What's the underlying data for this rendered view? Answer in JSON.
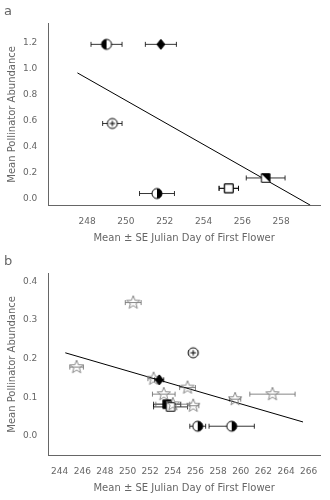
{
  "chart_data": [
    {
      "type": "scatter",
      "title": "a",
      "xlabel": "Mean ± SE Julian Day of First Flower",
      "ylabel": "Mean Pollinator Abundance",
      "xlim": [
        246,
        260
      ],
      "ylim": [
        -0.05,
        1.35
      ],
      "xticks": [
        248,
        250,
        252,
        254,
        256,
        258
      ],
      "yticks": [
        {
          "value": 0,
          "label": "0.0"
        },
        0.2,
        0.4,
        0.6,
        0.8,
        {
          "value": 1,
          "label": "1.0"
        },
        1.2
      ],
      "grid": false,
      "series": [
        {
          "type": "line",
          "color": "black",
          "line_style": "solid",
          "x": [
            247.5,
            259.5
          ],
          "values": [
            0.97,
            -0.05
          ]
        },
        {
          "type": "scatter",
          "marker": "half_circle_left",
          "color": "black",
          "x": [
            249.0
          ],
          "values": [
            1.19
          ],
          "xerr": [
            0.8
          ]
        },
        {
          "type": "scatter",
          "marker": "diamond_filled",
          "color": "black",
          "x": [
            251.8
          ],
          "values": [
            1.19
          ],
          "xerr": [
            0.8
          ]
        },
        {
          "type": "scatter",
          "marker": "circle_cross",
          "color": "black",
          "x": [
            249.3
          ],
          "values": [
            0.58
          ],
          "xerr": [
            0.5
          ]
        },
        {
          "type": "scatter",
          "marker": "half_circle_right",
          "color": "black",
          "x": [
            251.6
          ],
          "values": [
            0.04
          ],
          "xerr": [
            0.9
          ]
        },
        {
          "type": "scatter",
          "marker": "square_filled",
          "color": "black",
          "x": [
            255.3
          ],
          "values": [
            0.08
          ],
          "xerr": [
            0.5
          ]
        },
        {
          "type": "scatter",
          "marker": "square_open",
          "color": "black",
          "x": [
            255.3
          ],
          "values": [
            0.08
          ],
          "xerr": [
            0.5
          ]
        },
        {
          "type": "scatter",
          "marker": "square_half_diag",
          "color": "black",
          "x": [
            257.2
          ],
          "values": [
            0.16
          ],
          "xerr": [
            1.0
          ]
        }
      ]
    },
    {
      "type": "scatter",
      "title": "b",
      "xlabel": "Mean ± SE Julian Day of First Flower",
      "ylabel": "Mean Pollinator Abundance",
      "xlim": [
        243,
        267
      ],
      "ylim": [
        -0.05,
        0.42
      ],
      "xticks": [
        244,
        246,
        248,
        250,
        252,
        254,
        256,
        258,
        260,
        262,
        264,
        266
      ],
      "yticks": [
        {
          "value": 0,
          "label": "0.0"
        },
        0.1,
        0.2,
        0.3,
        0.4
      ],
      "grid": false,
      "series": [
        {
          "type": "line",
          "color": "black",
          "line_style": "solid",
          "x": [
            244.5,
            265.5
          ],
          "values": [
            0.215,
            0.036
          ]
        },
        {
          "type": "scatter",
          "marker": "star_open",
          "color": "gray",
          "x": [
            245.5
          ],
          "values": [
            0.178
          ],
          "xerr": [
            0.6
          ]
        },
        {
          "type": "scatter",
          "marker": "star_open",
          "color": "gray",
          "x": [
            250.5
          ],
          "values": [
            0.345
          ],
          "xerr": [
            0.7
          ]
        },
        {
          "type": "scatter",
          "marker": "star_open",
          "color": "gray",
          "x": [
            252.3
          ],
          "values": [
            0.148
          ],
          "xerr": [
            0.5
          ]
        },
        {
          "type": "scatter",
          "marker": "diamond_filled",
          "color": "black",
          "x": [
            252.8
          ],
          "values": [
            0.145
          ],
          "xerr": [
            0.4
          ]
        },
        {
          "type": "scatter",
          "marker": "star_open",
          "color": "gray",
          "x": [
            253.2
          ],
          "values": [
            0.108
          ],
          "xerr": [
            1.0
          ]
        },
        {
          "type": "scatter",
          "marker": "square_filled",
          "color": "black",
          "x": [
            253.5
          ],
          "values": [
            0.082
          ],
          "xerr": [
            1.2
          ]
        },
        {
          "type": "scatter",
          "marker": "square_open",
          "color": "black",
          "x": [
            253.8
          ],
          "values": [
            0.075
          ],
          "xerr": [
            1.5
          ]
        },
        {
          "type": "scatter",
          "marker": "star_open",
          "color": "gray",
          "x": [
            254.0
          ],
          "values": [
            0.082
          ],
          "xerr": [
            1.5
          ]
        },
        {
          "type": "scatter",
          "marker": "star_open",
          "color": "gray",
          "x": [
            255.3
          ],
          "values": [
            0.125
          ],
          "xerr": [
            0.7
          ]
        },
        {
          "type": "scatter",
          "marker": "star_open",
          "color": "gray",
          "x": [
            255.8
          ],
          "values": [
            0.078
          ],
          "xerr": [
            0.5
          ]
        },
        {
          "type": "scatter",
          "marker": "circle_cross",
          "color": "black",
          "x": [
            255.8
          ],
          "values": [
            0.215
          ],
          "xerr": [
            0.4
          ]
        },
        {
          "type": "scatter",
          "marker": "half_circle_right",
          "color": "black",
          "x": [
            256.2
          ],
          "values": [
            0.025
          ],
          "xerr": [
            0.7
          ]
        },
        {
          "type": "scatter",
          "marker": "half_circle_right",
          "color": "black",
          "x": [
            259.2
          ],
          "values": [
            0.025
          ],
          "xerr": [
            2.0
          ]
        },
        {
          "type": "scatter",
          "marker": "star_open",
          "color": "gray",
          "x": [
            259.5
          ],
          "values": [
            0.095
          ],
          "xerr": [
            0.5
          ]
        },
        {
          "type": "scatter",
          "marker": "star_open",
          "color": "gray",
          "x": [
            262.8
          ],
          "values": [
            0.108
          ],
          "xerr": [
            2.0
          ]
        }
      ]
    }
  ]
}
